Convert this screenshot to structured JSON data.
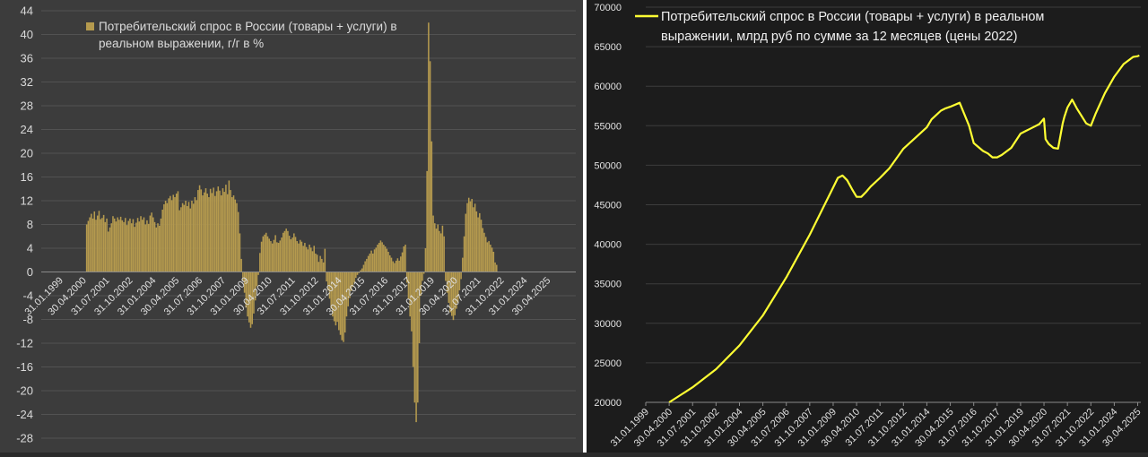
{
  "chart_data": [
    {
      "type": "bar",
      "title": "Потребительский спрос в России (товары + услуги) в реальном выражении, г/г в %",
      "xlabel": "",
      "ylabel": "",
      "ylim": [
        -28,
        44
      ],
      "y_ticks": [
        "44",
        "40",
        "36",
        "32",
        "28",
        "24",
        "20",
        "16",
        "12",
        "8",
        "4",
        "0",
        "-4",
        "-8",
        "-12",
        "-16",
        "-20",
        "-24",
        "-28"
      ],
      "y_tick_values": [
        44,
        40,
        36,
        32,
        28,
        24,
        20,
        16,
        12,
        8,
        4,
        0,
        -4,
        -8,
        -12,
        -16,
        -20,
        -24,
        -28
      ],
      "x_tick_labels": [
        "31.01.1999",
        "30.04.2000",
        "31.07.2001",
        "31.10.2002",
        "31.01.2004",
        "30.04.2005",
        "31.07.2006",
        "31.10.2007",
        "31.01.2009",
        "30.04.2010",
        "31.07.2011",
        "31.10.2012",
        "31.01.2014",
        "30.04.2015",
        "31.07.2016",
        "31.10.2017",
        "31.01.2019",
        "30.04.2020",
        "31.07.2021",
        "31.10.2022",
        "31.01.2024",
        "30.04.2025"
      ],
      "x_tick_index": [
        0,
        15,
        30,
        45,
        60,
        75,
        90,
        105,
        120,
        135,
        150,
        165,
        180,
        195,
        210,
        225,
        240,
        255,
        270,
        285,
        300,
        315
      ],
      "grid": true,
      "legend": "top-left",
      "bar_color": "#b59a4e",
      "series": [
        {
          "name": "Потребительский спрос в России (товары + услуги) в реальном выражении, г/г в %",
          "x_start": "30.04.2000",
          "frequency": "monthly",
          "values": [
            8.0,
            8.6,
            9.2,
            9.8,
            9.0,
            10.2,
            8.8,
            9.5,
            10.3,
            8.9,
            9.1,
            9.6,
            8.4,
            9.0,
            6.8,
            7.5,
            8.2,
            9.4,
            9.0,
            8.5,
            9.2,
            8.8,
            9.3,
            8.7,
            8.4,
            9.1,
            7.9,
            8.6,
            9.0,
            8.2,
            8.9,
            7.6,
            8.3,
            9.1,
            8.5,
            9.4,
            8.8,
            9.2,
            8.0,
            8.7,
            8.1,
            9.5,
            10.0,
            9.2,
            8.4,
            7.5,
            8.2,
            7.8,
            9.0,
            10.5,
            11.4,
            12.0,
            11.6,
            12.4,
            12.8,
            12.1,
            13.0,
            12.6,
            13.2,
            13.6,
            10.4,
            10.9,
            11.6,
            11.3,
            12.0,
            11.1,
            11.8,
            10.7,
            12.0,
            11.5,
            12.6,
            12.1,
            13.8,
            14.6,
            13.9,
            12.9,
            13.4,
            14.1,
            13.2,
            12.6,
            14.0,
            13.3,
            14.2,
            12.8,
            13.6,
            14.4,
            13.7,
            12.9,
            14.1,
            13.5,
            14.7,
            13.1,
            15.4,
            13.8,
            12.6,
            12.9,
            12.2,
            11.6,
            10.1,
            6.5,
            2.2,
            -1.5,
            -3.5,
            -6.0,
            -7.5,
            -8.5,
            -9.4,
            -8.8,
            -7.0,
            -4.8,
            -2.4,
            -0.5,
            3.2,
            5.1,
            6.0,
            6.3,
            6.6,
            6.0,
            5.6,
            5.2,
            4.8,
            5.4,
            6.2,
            5.0,
            4.9,
            5.3,
            5.8,
            6.6,
            6.9,
            7.3,
            6.9,
            6.1,
            5.5,
            5.8,
            6.5,
            5.9,
            5.2,
            4.8,
            5.4,
            5.1,
            4.4,
            4.9,
            4.2,
            3.8,
            4.6,
            4.1,
            3.5,
            4.4,
            3.1,
            2.9,
            1.7,
            2.7,
            2.2,
            1.6,
            3.9,
            -1.6,
            -3.1,
            -4.5,
            -6.2,
            -7.5,
            -8.3,
            -9.0,
            -8.4,
            -9.8,
            -10.6,
            -11.5,
            -11.8,
            -10.2,
            -7.5,
            -5.8,
            -4.4,
            -3.2,
            -2.5,
            -1.8,
            -1.0,
            -0.5,
            -0.2,
            0.3,
            0.6,
            1.2,
            1.8,
            2.2,
            2.7,
            3.1,
            3.6,
            3.1,
            3.8,
            4.1,
            4.6,
            4.9,
            5.3,
            5.0,
            4.6,
            4.3,
            3.9,
            3.4,
            2.8,
            2.4,
            1.8,
            1.5,
            1.9,
            2.3,
            1.9,
            2.6,
            3.3,
            4.3,
            4.6,
            -1.8,
            -4.5,
            -7.5,
            -10.0,
            -16.0,
            -22.0,
            -25.3,
            -22.0,
            -12.0,
            -4.0,
            -1.5,
            -0.3,
            4.0,
            17.0,
            42.0,
            35.5,
            22.0,
            9.5,
            8.2,
            7.3,
            8.0,
            6.9,
            6.5,
            7.8,
            6.0,
            -1.5,
            -3.5,
            -5.2,
            -6.8,
            -7.4,
            -8.1,
            -7.3,
            -6.2,
            -5.2,
            -3.1,
            -1.2,
            2.4,
            6.0,
            9.8,
            11.6,
            12.5,
            11.9,
            12.3,
            10.9,
            11.5,
            10.2,
            9.2,
            9.9,
            8.8,
            7.4,
            6.6,
            5.9,
            5.0,
            5.2,
            4.6,
            4.1,
            3.4,
            1.6,
            1.2
          ]
        }
      ]
    },
    {
      "type": "line",
      "title": "Потребительский спрос в России (товары + услуги) в реальном выражении, млрд руб по сумме за 12 месяцев (цены 2022)",
      "xlabel": "",
      "ylabel": "",
      "ylim": [
        20000,
        70000
      ],
      "y_ticks": [
        "70000",
        "65000",
        "60000",
        "55000",
        "50000",
        "45000",
        "40000",
        "35000",
        "30000",
        "25000",
        "20000"
      ],
      "y_tick_values": [
        70000,
        65000,
        60000,
        55000,
        50000,
        45000,
        40000,
        35000,
        30000,
        25000,
        20000
      ],
      "x_tick_labels": [
        "31.01.1999",
        "30.04.2000",
        "31.07.2001",
        "31.10.2002",
        "31.01.2004",
        "30.04.2005",
        "31.07.2006",
        "31.10.2007",
        "31.01.2009",
        "30.04.2010",
        "31.07.2011",
        "31.10.2012",
        "31.01.2014",
        "30.04.2015",
        "31.07.2016",
        "31.10.2017",
        "31.01.2019",
        "30.04.2020",
        "31.07.2021",
        "31.10.2022",
        "31.01.2024",
        "30.04.2025"
      ],
      "grid": true,
      "legend": "top-left",
      "line_color": "#ffff33",
      "series": [
        {
          "name": "Потребительский спрос в России (товары + услуги) в реальном выражении, млрд руб по сумме за 12 месяцев (цены 2022)",
          "x": [
            "30.04.2000",
            "31.07.2001",
            "31.10.2002",
            "31.01.2004",
            "30.04.2005",
            "31.07.2006",
            "31.10.2007",
            "31.01.2009",
            "30.04.2009",
            "31.07.2009",
            "31.10.2009",
            "31.01.2010",
            "30.04.2010",
            "31.07.2010",
            "31.10.2010",
            "31.01.2011",
            "31.07.2011",
            "31.10.2011",
            "31.01.2012",
            "31.10.2012",
            "31.01.2014",
            "30.04.2014",
            "31.10.2014",
            "31.01.2015",
            "30.04.2015",
            "31.10.2015",
            "30.04.2016",
            "31.07.2016",
            "31.10.2016",
            "31.01.2017",
            "30.04.2017",
            "31.07.2017",
            "31.10.2017",
            "31.01.2018",
            "31.07.2018",
            "31.01.2019",
            "31.07.2019",
            "31.10.2019",
            "31.01.2020",
            "30.04.2020",
            "31.05.2020",
            "31.07.2020",
            "31.10.2020",
            "31.01.2021",
            "30.04.2021",
            "31.05.2021",
            "31.07.2021",
            "31.10.2021",
            "31.01.2022",
            "31.07.2022",
            "31.10.2022",
            "31.01.2023",
            "31.07.2023",
            "31.01.2024",
            "31.07.2024",
            "31.01.2025",
            "30.04.2025",
            "31.05.2025"
          ],
          "values": [
            20000,
            21900,
            24200,
            27200,
            31000,
            35800,
            41200,
            47200,
            48400,
            48700,
            48100,
            47000,
            46000,
            46000,
            46600,
            47300,
            48400,
            49000,
            49600,
            52100,
            54800,
            55800,
            56900,
            57200,
            57400,
            57900,
            55000,
            52800,
            52300,
            51800,
            51500,
            51000,
            51000,
            51300,
            52200,
            54000,
            54600,
            54900,
            55200,
            55900,
            53300,
            52700,
            52200,
            52100,
            55300,
            56100,
            57300,
            58300,
            57200,
            55300,
            55000,
            56500,
            59100,
            61200,
            62800,
            63700,
            63800,
            63900
          ]
        }
      ]
    }
  ]
}
